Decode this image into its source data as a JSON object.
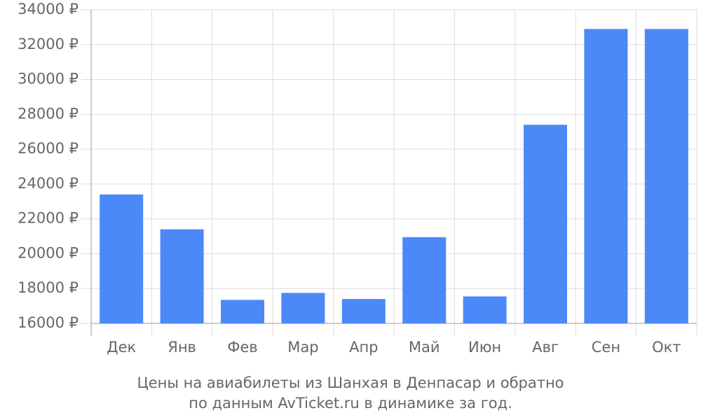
{
  "chart_data": {
    "type": "bar",
    "title": [
      "Цены на авиабилеты из Шанхая в Денпасар и обратно",
      "по данным AvTicket.ru в динамике за год."
    ],
    "categories": [
      "Дек",
      "Янв",
      "Фев",
      "Мар",
      "Апр",
      "Май",
      "Июн",
      "Авг",
      "Сен",
      "Окт"
    ],
    "values": [
      23400,
      21400,
      17350,
      17750,
      17400,
      20950,
      17550,
      27400,
      32900,
      32900
    ],
    "color": "#4d88f9",
    "ylim": [
      16000,
      34000
    ],
    "yticks": [
      {
        "value": 16000,
        "label": "16000 ₽"
      },
      {
        "value": 18000,
        "label": "18000 ₽"
      },
      {
        "value": 20000,
        "label": "20000 ₽"
      },
      {
        "value": 22000,
        "label": "22000 ₽"
      },
      {
        "value": 24000,
        "label": "24000 ₽"
      },
      {
        "value": 26000,
        "label": "26000 ₽"
      },
      {
        "value": 28000,
        "label": "28000 ₽"
      },
      {
        "value": 30000,
        "label": "30000 ₽"
      },
      {
        "value": 32000,
        "label": "32000 ₽"
      },
      {
        "value": 34000,
        "label": "34000 ₽"
      }
    ],
    "grid": true
  }
}
